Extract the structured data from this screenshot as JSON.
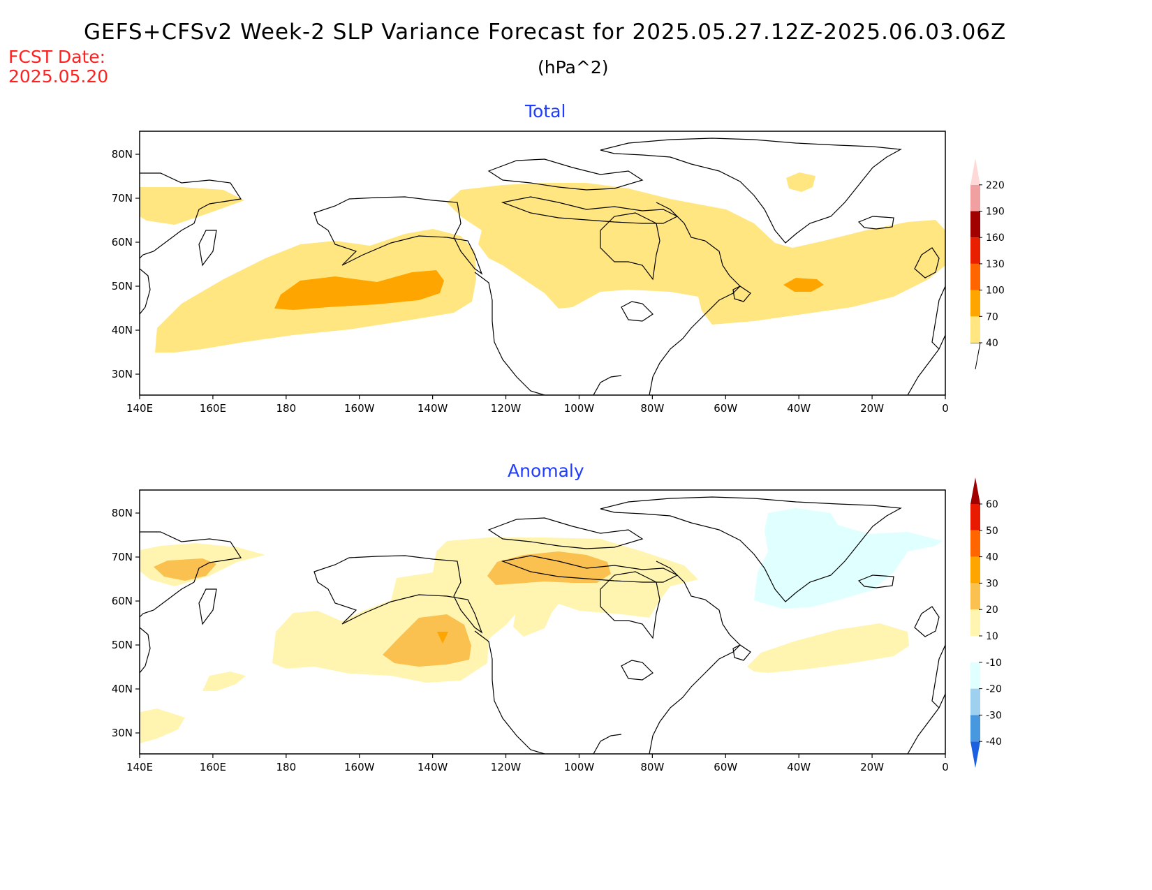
{
  "header": {
    "title": "GEFS+CFSv2 Week-2 SLP Variance Forecast for 2025.05.27.12Z-2025.06.03.06Z",
    "units": "(hPa^2)",
    "fcst_label": "FCST Date:",
    "fcst_date": "2025.05.20"
  },
  "axes": {
    "lon_labels": [
      "140E",
      "160E",
      "180",
      "160W",
      "140W",
      "120W",
      "100W",
      "80W",
      "60W",
      "40W",
      "20W",
      "0"
    ],
    "lat_labels": [
      "80N",
      "70N",
      "60N",
      "50N",
      "40N",
      "30N"
    ]
  },
  "panels": [
    {
      "title": "Total",
      "colorbar": {
        "levels": [
          "40",
          "70",
          "100",
          "130",
          "160",
          "190",
          "220"
        ],
        "colors": [
          "#ffe680",
          "#ffa500",
          "#ff6600",
          "#e82000",
          "#a00000",
          "#f0a0a0",
          "#ffd8d8"
        ]
      }
    },
    {
      "title": "Anomaly",
      "colorbar": {
        "levels": [
          "60",
          "50",
          "40",
          "30",
          "20",
          "10",
          "-10",
          "-20",
          "-30",
          "-40"
        ],
        "colors": [
          "#a00000",
          "#e81a00",
          "#ff6600",
          "#ffa500",
          "#fac050",
          "#fff5b0",
          "#ffffff",
          "#e0ffff",
          "#a0d0f0",
          "#4898e0",
          "#1a60e0"
        ]
      }
    }
  ]
}
